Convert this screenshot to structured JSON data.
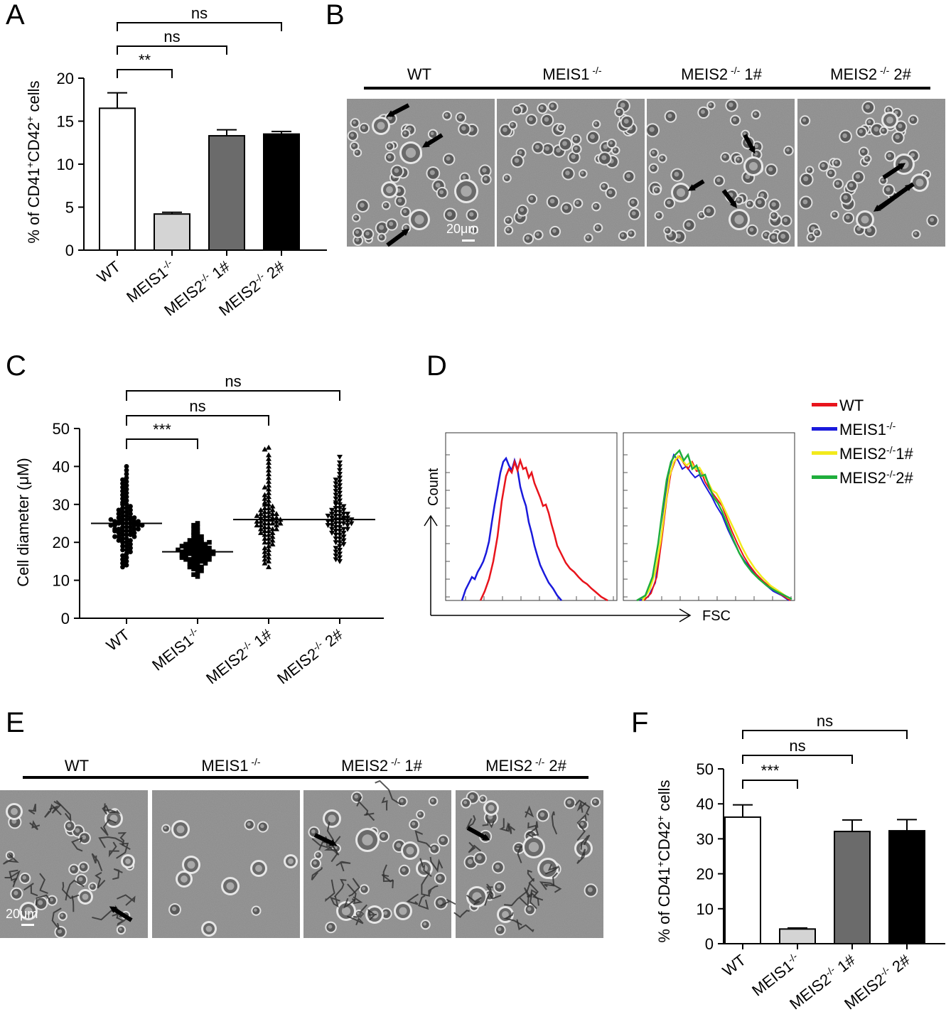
{
  "panels": {
    "A": {
      "letter": "A",
      "chart_data": {
        "type": "bar",
        "categories": [
          "WT",
          "MEIS1-/-",
          "MEIS2-/- 1#",
          "MEIS2-/- 2#"
        ],
        "category_labels": [
          {
            "main": "WT",
            "sup": "",
            "tail": ""
          },
          {
            "main": "MEIS1",
            "sup": "-/-",
            "tail": ""
          },
          {
            "main": "MEIS2",
            "sup": "-/-",
            "tail": " 1#"
          },
          {
            "main": "MEIS2",
            "sup": "-/-",
            "tail": " 2#"
          }
        ],
        "values": [
          16.5,
          4.2,
          13.3,
          13.5
        ],
        "errors": [
          1.8,
          0.2,
          0.7,
          0.3
        ],
        "ylabel": {
          "pre": "% of CD41",
          "sup1": "+",
          "mid": "CD42",
          "sup2": "+",
          "post": " cells"
        },
        "ylim": [
          0,
          20
        ],
        "yticks": [
          0,
          5,
          10,
          15,
          20
        ],
        "bar_colors": [
          "#ffffff",
          "#d4d4d4",
          "#6b6b6b",
          "#000000"
        ],
        "significance": [
          {
            "from": 0,
            "to": 1,
            "label": "**"
          },
          {
            "from": 0,
            "to": 2,
            "label": "ns"
          },
          {
            "from": 0,
            "to": 3,
            "label": "ns"
          }
        ]
      }
    },
    "B": {
      "letter": "B",
      "labels": [
        {
          "main": "WT",
          "sup": "",
          "tail": ""
        },
        {
          "main": "MEIS1",
          "sup": " -/-",
          "tail": ""
        },
        {
          "main": "MEIS2",
          "sup": " -/-",
          "tail": " 1#"
        },
        {
          "main": "MEIS2",
          "sup": " -/-",
          "tail": " 2#"
        }
      ],
      "scale_bar": "20μm"
    },
    "C": {
      "letter": "C",
      "chart_data": {
        "type": "scatter",
        "categories": [
          "WT",
          "MEIS1-/-",
          "MEIS2-/- 1#",
          "MEIS2-/- 2#"
        ],
        "category_labels": [
          {
            "main": "WT",
            "sup": "",
            "tail": ""
          },
          {
            "main": "MEIS1",
            "sup": "-/-",
            "tail": ""
          },
          {
            "main": "MEIS2",
            "sup": "-/-",
            "tail": " 1#"
          },
          {
            "main": "MEIS2",
            "sup": "-/-",
            "tail": " 2#"
          }
        ],
        "series": [
          {
            "marker": "circle",
            "mean": 25.0,
            "values": [
              40,
              39,
              38,
              37,
              36.5,
              36,
              35.5,
              35,
              34.5,
              34,
              33.5,
              33,
              32.5,
              32,
              31.5,
              31,
              30.5,
              30,
              30,
              29.5,
              29,
              29,
              28.5,
              28,
              28,
              27.5,
              27,
              27,
              26.5,
              26.5,
              26,
              26,
              26,
              25.5,
              25.5,
              25,
              25,
              25,
              25,
              24.5,
              24.5,
              24.5,
              24,
              24,
              24,
              23.5,
              23.5,
              23.5,
              23,
              23,
              23,
              22.5,
              22.5,
              22,
              22,
              22,
              21.5,
              21.5,
              21,
              21,
              20.5,
              20.5,
              20,
              20,
              19.5,
              19,
              19,
              18.5,
              18,
              18,
              17.5,
              17,
              16.5,
              16,
              15.5,
              15,
              14.5,
              14,
              13.5,
              27.5,
              26.5,
              25.5,
              24.5,
              23.5,
              28.5,
              21.5,
              25.5,
              24.5,
              26,
              23
            ]
          },
          {
            "marker": "square",
            "mean": 17.5,
            "values": [
              25,
              24.5,
              24,
              23.5,
              23,
              22.5,
              22,
              22,
              21.5,
              21,
              21,
              20.5,
              20.5,
              20,
              20,
              20,
              19.5,
              19.5,
              19,
              19,
              19,
              18.5,
              18.5,
              18.5,
              18,
              18,
              18,
              18,
              17.5,
              17.5,
              17.5,
              17.5,
              17,
              17,
              17,
              17,
              16.5,
              16.5,
              16.5,
              16,
              16,
              16,
              15.5,
              15.5,
              15.5,
              15,
              15,
              15,
              14.5,
              14.5,
              14,
              14,
              13.5,
              13.5,
              13,
              13,
              12.5,
              12,
              11.5,
              11,
              18.5,
              17.5,
              16.5,
              19.5,
              15.5,
              17,
              18,
              16,
              19,
              20
            ]
          },
          {
            "marker": "triangle-up",
            "mean": 26.0,
            "values": [
              45,
              44.5,
              43,
              42,
              41,
              40,
              39,
              38,
              37,
              36,
              35,
              34.5,
              34,
              33,
              32.5,
              32,
              31.5,
              31,
              30.5,
              30,
              30,
              29.5,
              29,
              29,
              28.5,
              28,
              28,
              27.5,
              27.5,
              27,
              27,
              26.5,
              26.5,
              26,
              26,
              26,
              25.5,
              25.5,
              25,
              25,
              25,
              24.5,
              24.5,
              24,
              24,
              23.5,
              23.5,
              23,
              23,
              22.5,
              22.5,
              22,
              22,
              21.5,
              21,
              21,
              20.5,
              20,
              20,
              19.5,
              19,
              18.5,
              18,
              17.5,
              17,
              16.5,
              16,
              15.5,
              15,
              14.5,
              13.5,
              26.5,
              27.5,
              25.5,
              24.5,
              28.5,
              23.5,
              26,
              27,
              25
            ]
          },
          {
            "marker": "triangle-down",
            "mean": 26.0,
            "values": [
              42.5,
              41,
              40,
              39,
              38,
              37,
              36.5,
              36,
              35.5,
              35,
              34.5,
              34,
              33.5,
              33,
              32.5,
              32,
              31.5,
              31,
              30.5,
              30,
              30,
              29.5,
              29,
              29,
              28.5,
              28,
              28,
              27.5,
              27.5,
              27,
              27,
              26.5,
              26.5,
              26,
              26,
              26,
              25.5,
              25.5,
              25,
              25,
              25,
              24.5,
              24.5,
              24,
              24,
              23.5,
              23.5,
              23,
              23,
              22.5,
              22.5,
              22,
              22,
              21.5,
              21,
              21,
              20.5,
              20,
              20,
              19.5,
              19,
              18.5,
              18,
              17.5,
              17,
              16.5,
              16,
              15.5,
              15,
              26.5,
              27.5,
              25.5,
              24.5,
              28.5,
              23.5,
              26,
              27,
              25
            ]
          }
        ],
        "ylabel": "Cell diameter (μM)",
        "ylim": [
          0,
          50
        ],
        "yticks": [
          0,
          10,
          20,
          30,
          40,
          50
        ],
        "significance": [
          {
            "from": 0,
            "to": 1,
            "label": "***"
          },
          {
            "from": 0,
            "to": 2,
            "label": "ns"
          },
          {
            "from": 0,
            "to": 3,
            "label": "ns"
          }
        ]
      }
    },
    "D": {
      "letter": "D",
      "chart_data": {
        "type": "line",
        "ylabel": "Count",
        "xlabel": "FSC",
        "legend": [
          {
            "main": "WT",
            "sup": "",
            "tail": "",
            "color": "#e8141c"
          },
          {
            "main": "MEIS1",
            "sup": "-/-",
            "tail": "",
            "color": "#1a1adc"
          },
          {
            "main": "MEIS2",
            "sup": "-/-",
            "tail": "1#",
            "color": "#f2ea1c"
          },
          {
            "main": "MEIS2",
            "sup": "-/-",
            "tail": "2#",
            "color": "#1fae3c"
          }
        ],
        "left_plot_series": [
          "WT",
          "MEIS1-/-"
        ],
        "right_plot_series": [
          "WT",
          "MEIS1-/-",
          "MEIS2-/-1#",
          "MEIS2-/-2#"
        ]
      }
    },
    "E": {
      "letter": "E",
      "labels": [
        {
          "main": "WT",
          "sup": "",
          "tail": ""
        },
        {
          "main": "MEIS1",
          "sup": " -/-",
          "tail": ""
        },
        {
          "main": "MEIS2",
          "sup": " -/-",
          "tail": " 1#"
        },
        {
          "main": "MEIS2",
          "sup": " -/-",
          "tail": " 2#"
        }
      ],
      "scale_bar": "20μm"
    },
    "F": {
      "letter": "F",
      "chart_data": {
        "type": "bar",
        "categories": [
          "WT",
          "MEIS1-/-",
          "MEIS2-/- 1#",
          "MEIS2-/- 2#"
        ],
        "category_labels": [
          {
            "main": "WT",
            "sup": "",
            "tail": ""
          },
          {
            "main": "MEIS1",
            "sup": "-/-",
            "tail": ""
          },
          {
            "main": "MEIS2",
            "sup": "-/-",
            "tail": " 1#"
          },
          {
            "main": "MEIS2",
            "sup": "-/-",
            "tail": " 2#"
          }
        ],
        "values": [
          36.2,
          4.2,
          32.1,
          32.3
        ],
        "errors": [
          3.5,
          0.3,
          3.3,
          3.2
        ],
        "ylabel": {
          "pre": "% of CD41",
          "sup1": "+",
          "mid": "CD42",
          "sup2": "+",
          "post": " cells"
        },
        "ylim": [
          0,
          50
        ],
        "yticks": [
          0,
          10,
          20,
          30,
          40,
          50
        ],
        "bar_colors": [
          "#ffffff",
          "#d4d4d4",
          "#6b6b6b",
          "#000000"
        ],
        "significance": [
          {
            "from": 0,
            "to": 1,
            "label": "***"
          },
          {
            "from": 0,
            "to": 2,
            "label": "ns"
          },
          {
            "from": 0,
            "to": 3,
            "label": "ns"
          }
        ]
      }
    }
  }
}
